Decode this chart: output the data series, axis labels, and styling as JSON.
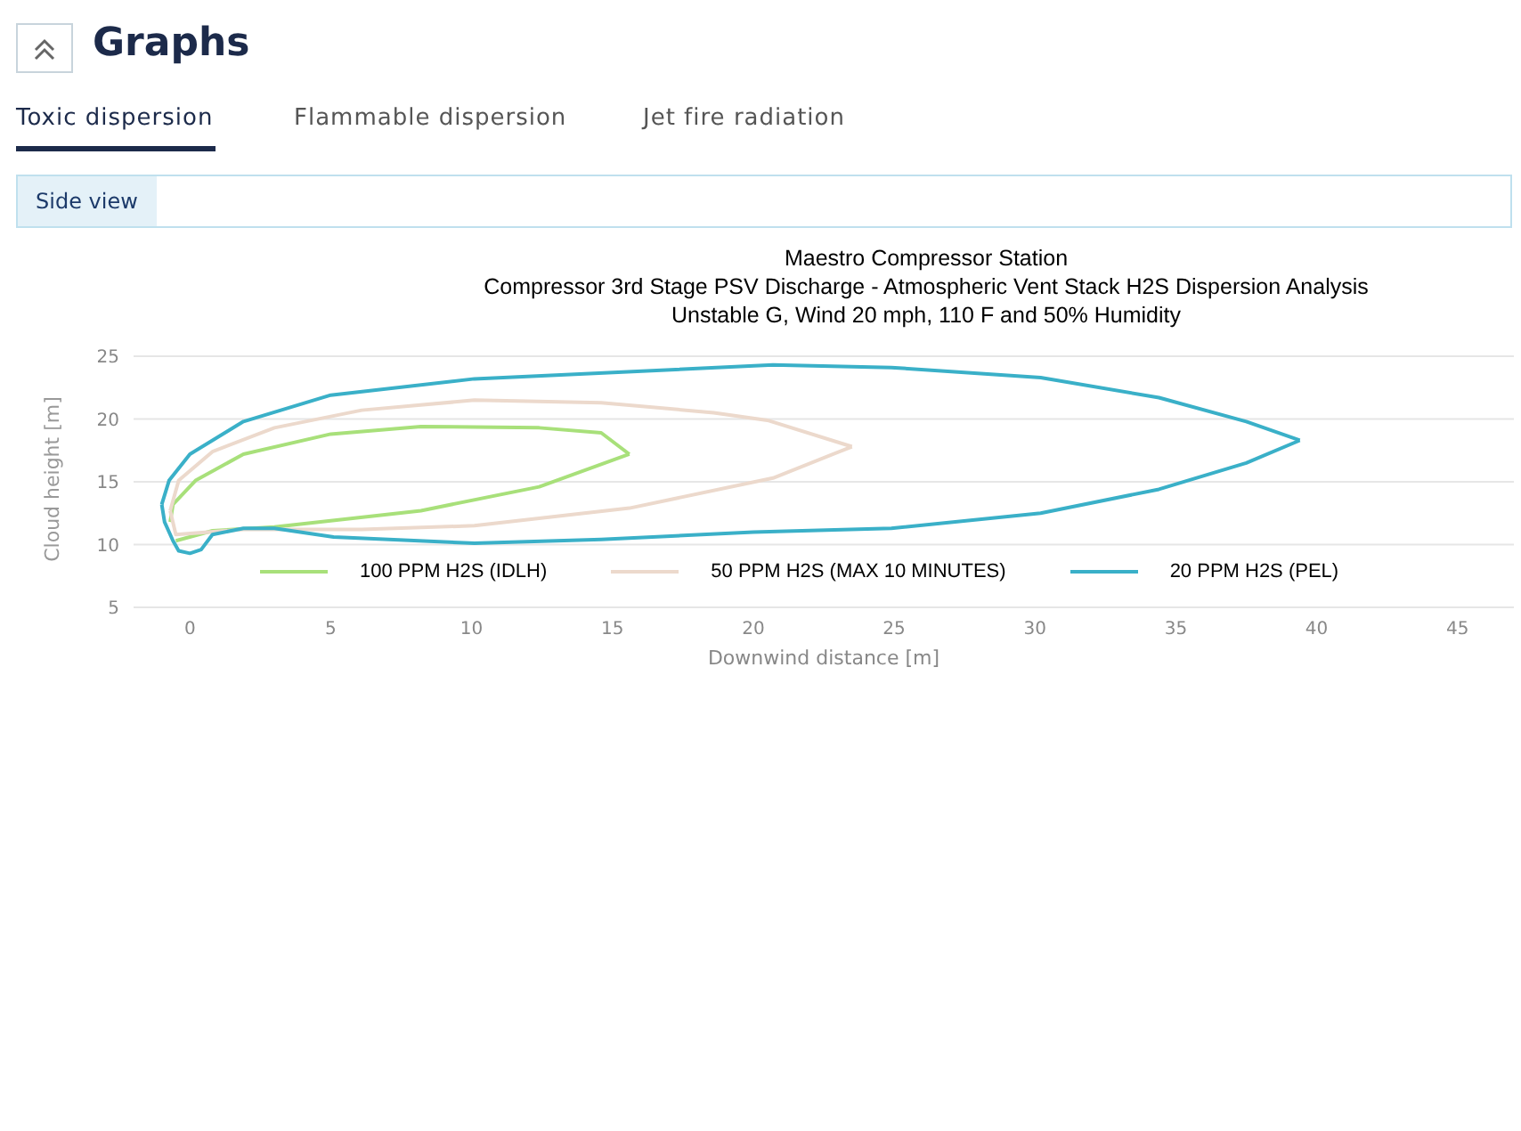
{
  "chart_data": {
    "type": "line",
    "title": "Maestro Compressor Station",
    "subtitle": "Compressor 3rd Stage PSV Discharge - Atmospheric Vent Stack H2S Dispersion Analysis\nUnstable G, Wind 20 mph, 110 F and 50% Humidity",
    "xlabel": "Downwind distance [m]",
    "ylabel": "Cloud height [m]",
    "annotations": [
      "Graphs",
      "Toxic dispersion",
      "Flammable dispersion",
      "Jet fire radiation",
      "Side view"
    ],
    "series": [
      {
        "name": "100 PPM H2S (IDLH)",
        "color": "#a8e07a",
        "x": [
          -0.7,
          -0.6,
          0.2,
          1.9,
          5,
          8.2,
          12.4,
          14.6,
          15.6
        ],
        "values": [
          11.8,
          13.2,
          15.1,
          17.2,
          18.8,
          19.4,
          19.3,
          18.9,
          17.2
        ]
      },
      {
        "color": "#a8e07a",
        "x": [
          15.6,
          12.4,
          8.2,
          3.0,
          0.8,
          -0.5
        ],
        "values": [
          17.2,
          14.6,
          12.7,
          11.4,
          11.1,
          10.3
        ]
      },
      {
        "name": "50 PPM H2S (MAX 10 MINUTES)",
        "color": "#ecd9cc",
        "x": [
          -0.7,
          -0.4,
          0.8,
          3.0,
          6.1,
          10.1,
          14.6,
          18.6,
          20.5,
          23.5
        ],
        "values": [
          12.7,
          15.1,
          17.4,
          19.3,
          20.7,
          21.5,
          21.3,
          20.5,
          19.9,
          17.8
        ]
      },
      {
        "color": "#ecd9cc",
        "x": [
          23.5,
          20.7,
          15.6,
          10.1,
          6.1,
          1.9,
          -0.5,
          -0.7
        ],
        "values": [
          17.8,
          15.3,
          12.9,
          11.5,
          11.2,
          11.2,
          10.8,
          12.7
        ]
      },
      {
        "name": "20 PPM H2S (PEL)",
        "color": "#3ab0c8",
        "x": [
          -1.0,
          -0.74,
          0,
          1.9,
          5,
          10.1,
          20.7,
          24.9,
          30.2,
          34.4,
          37.5,
          39.4
        ],
        "values": [
          13.2,
          15.1,
          17.2,
          19.8,
          21.9,
          23.2,
          24.3,
          24.1,
          23.3,
          21.7,
          19.8,
          18.3
        ]
      },
      {
        "color": "#3ab0c8",
        "x": [
          39.4,
          37.5,
          34.4,
          30.2,
          24.9,
          20,
          14.6,
          10.1,
          5.1,
          3.0,
          1.9,
          0.8,
          0.4,
          0,
          -0.4,
          -0.6,
          -0.9,
          -1.0
        ],
        "values": [
          18.3,
          16.5,
          14.4,
          12.5,
          11.3,
          11.0,
          10.4,
          10.1,
          10.6,
          11.3,
          11.3,
          10.8,
          9.6,
          9.3,
          9.5,
          10.3,
          11.8,
          13.2
        ]
      }
    ],
    "xlim": [
      -2,
      47
    ],
    "xticks": [
      0,
      5,
      10,
      15,
      20,
      25,
      30,
      35,
      40,
      45
    ],
    "ylim": [
      5,
      25
    ],
    "yticks": [
      5,
      10,
      15,
      20,
      25
    ],
    "grid": "y",
    "legend": "bottom",
    "marker": "none",
    "line_style": "solid"
  }
}
